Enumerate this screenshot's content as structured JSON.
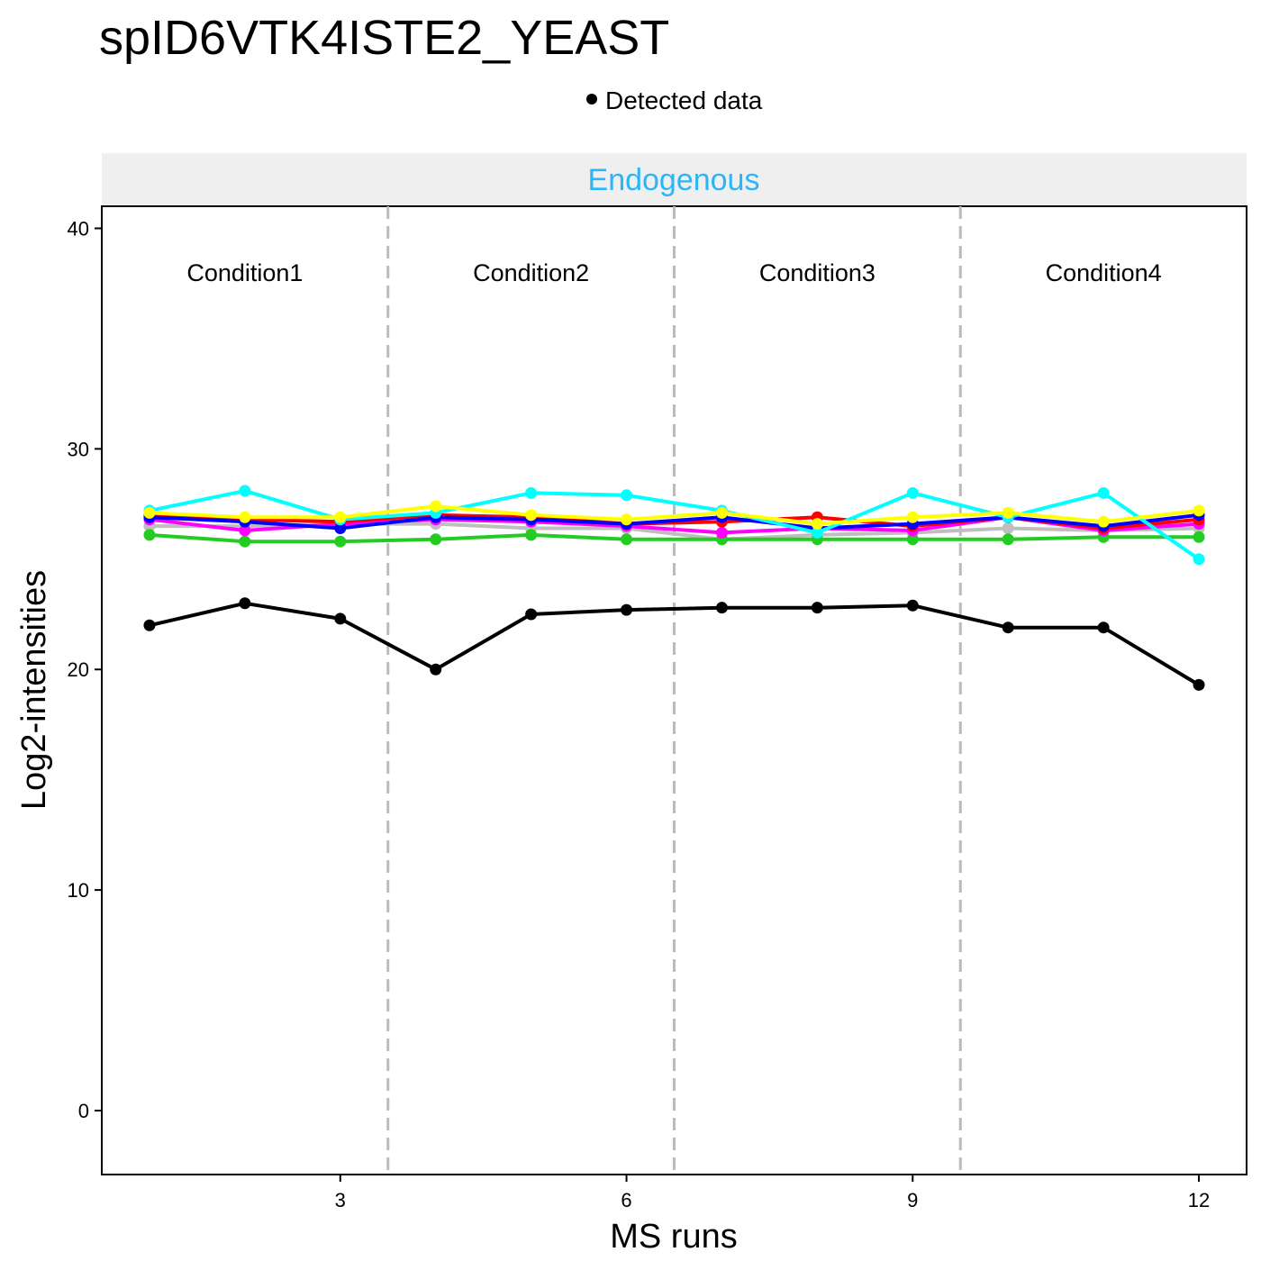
{
  "chart_data": {
    "type": "line",
    "title": "spID6VTK4ISTE2_YEAST",
    "legend": {
      "position": "top",
      "label": "Detected data",
      "marker_color": "#000000"
    },
    "facet_label": "Endogenous",
    "facet_label_color": "#29B6F6",
    "xlabel": "MS runs",
    "ylabel": "Log2-intensities",
    "xlim": [
      0.5,
      12.5
    ],
    "ylim": [
      -2.9,
      41
    ],
    "x_ticks": [
      3,
      6,
      9,
      12
    ],
    "y_ticks": [
      0,
      10,
      20,
      30,
      40
    ],
    "grid": false,
    "condition_dividers": [
      3.5,
      6.5,
      9.5
    ],
    "conditions": [
      {
        "label": "Condition1",
        "x": 2
      },
      {
        "label": "Condition2",
        "x": 5
      },
      {
        "label": "Condition3",
        "x": 8
      },
      {
        "label": "Condition4",
        "x": 11
      }
    ],
    "x": [
      1,
      2,
      3,
      4,
      5,
      6,
      7,
      8,
      9,
      10,
      11,
      12
    ],
    "series": [
      {
        "color": "#BEBEBE",
        "values": [
          26.5,
          26.5,
          26.6,
          26.6,
          26.4,
          26.4,
          25.9,
          26.1,
          26.2,
          26.4,
          26.3,
          26.4
        ]
      },
      {
        "color": "#22CC22",
        "values": [
          26.1,
          25.8,
          25.8,
          25.9,
          26.1,
          25.9,
          25.9,
          25.9,
          25.9,
          25.9,
          26.0,
          26.0
        ]
      },
      {
        "color": "#FF00FF",
        "values": [
          26.8,
          26.3,
          26.6,
          26.8,
          26.7,
          26.5,
          26.2,
          26.4,
          26.3,
          26.9,
          26.3,
          26.6
        ]
      },
      {
        "color": "#FF0000",
        "values": [
          27.0,
          26.8,
          26.7,
          27.0,
          26.9,
          26.6,
          26.7,
          26.9,
          26.5,
          26.9,
          26.4,
          26.8
        ]
      },
      {
        "color": "#0000FF",
        "values": [
          26.9,
          26.7,
          26.4,
          26.9,
          26.8,
          26.6,
          26.9,
          26.4,
          26.6,
          26.9,
          26.5,
          27.0
        ]
      },
      {
        "color": "#00FFFF",
        "values": [
          27.2,
          28.1,
          26.8,
          27.1,
          28.0,
          27.9,
          27.2,
          26.2,
          28.0,
          26.9,
          28.0,
          25.0
        ]
      },
      {
        "color": "#FFFF00",
        "values": [
          27.1,
          26.9,
          26.9,
          27.4,
          27.0,
          26.8,
          27.1,
          26.6,
          26.9,
          27.1,
          26.7,
          27.2
        ]
      },
      {
        "color": "#000000",
        "values": [
          22.0,
          23.0,
          22.3,
          20.0,
          22.5,
          22.7,
          22.8,
          22.8,
          22.9,
          21.9,
          21.9,
          19.3
        ]
      }
    ]
  }
}
